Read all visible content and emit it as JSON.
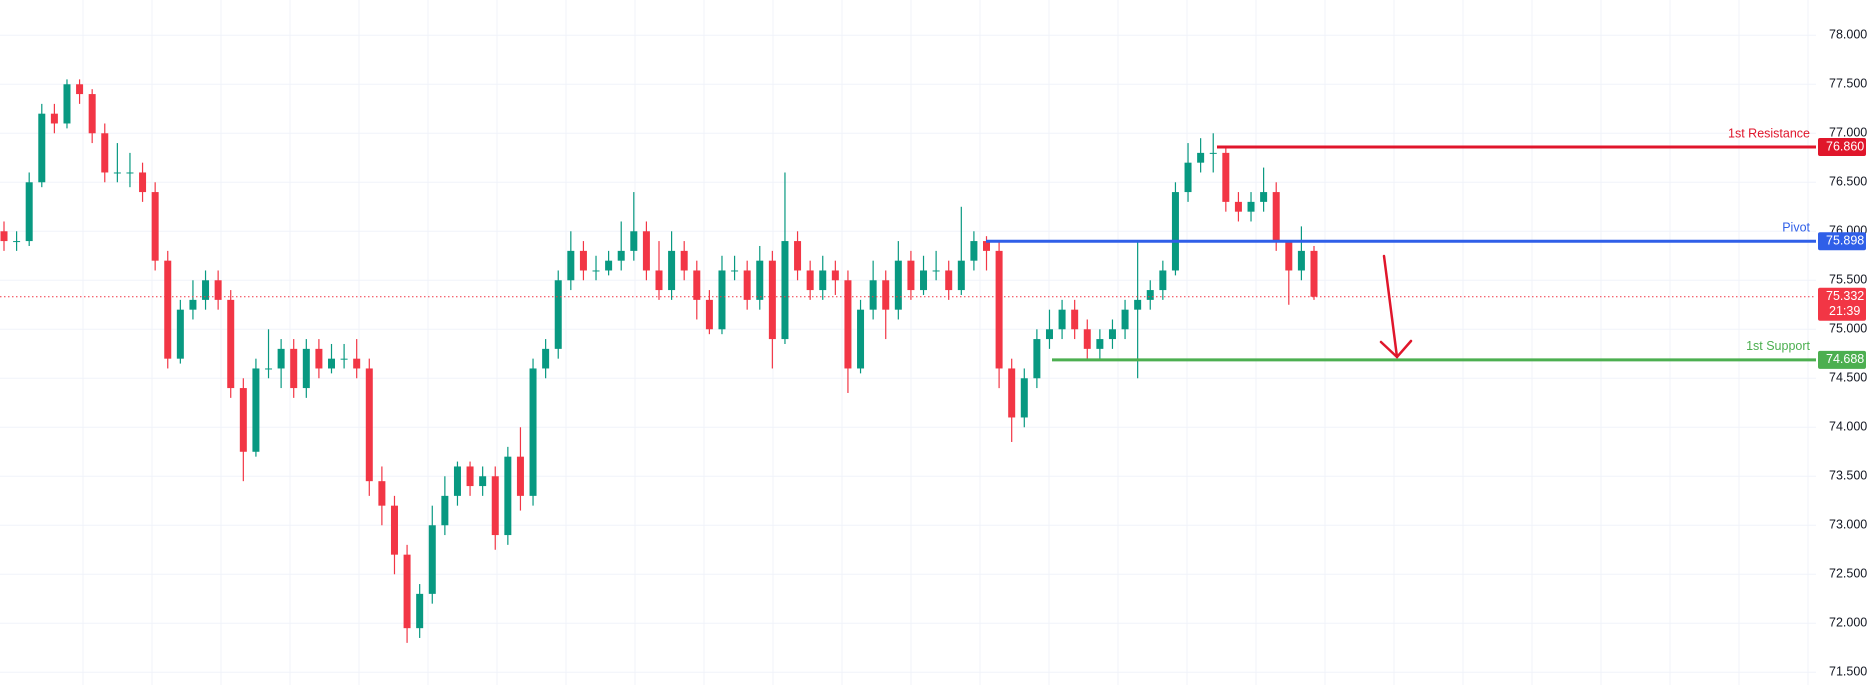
{
  "chart_data": {
    "type": "candlestick",
    "up_color": "#089981",
    "down_color": "#f23645",
    "ylim": [
      71.37,
      78.36
    ],
    "yticks": [
      {
        "value": 71.5,
        "label": "71.500"
      },
      {
        "value": 72,
        "label": "72.000"
      },
      {
        "value": 72.5,
        "label": "72.500"
      },
      {
        "value": 73,
        "label": "73.000"
      },
      {
        "value": 73.5,
        "label": "73.500"
      },
      {
        "value": 74,
        "label": "74.000"
      },
      {
        "value": 74.5,
        "label": "74.500"
      },
      {
        "value": 75,
        "label": "75.000"
      },
      {
        "value": 75.5,
        "label": "75.500"
      },
      {
        "value": 76,
        "label": "76.000"
      },
      {
        "value": 76.5,
        "label": "76.500"
      },
      {
        "value": 77,
        "label": "77.000"
      },
      {
        "value": 77.5,
        "label": "77.500"
      },
      {
        "value": 78,
        "label": "78.000"
      }
    ],
    "grid": true,
    "open": [
      76.0,
      75.9,
      75.9,
      76.5,
      77.2,
      77.1,
      77.5,
      77.4,
      77.0,
      76.6,
      76.6,
      76.6,
      76.4,
      75.7,
      74.7,
      75.2,
      75.3,
      75.5,
      75.3,
      74.4,
      73.75,
      74.6,
      74.6,
      74.8,
      74.4,
      74.8,
      74.6,
      74.7,
      74.7,
      74.6,
      73.45,
      73.2,
      72.7,
      71.95,
      72.3,
      73.0,
      73.3,
      73.6,
      73.4,
      73.5,
      72.9,
      73.7,
      73.3,
      74.6,
      74.8,
      75.5,
      75.8,
      75.6,
      75.6,
      75.7,
      75.8,
      76.0,
      75.6,
      75.4,
      75.8,
      75.6,
      75.3,
      75.0,
      75.6,
      75.6,
      75.3,
      75.7,
      74.9,
      75.9,
      75.6,
      75.4,
      75.6,
      75.5,
      74.6,
      75.2,
      75.5,
      75.2,
      75.7,
      75.4,
      75.6,
      75.6,
      75.4,
      75.7,
      75.9,
      75.8,
      74.6,
      74.1,
      74.5,
      74.9,
      75.0,
      75.2,
      75.0,
      74.8,
      74.9,
      75.0,
      75.2,
      75.3,
      75.4,
      75.6,
      76.4,
      76.7,
      76.8,
      76.8,
      76.3,
      76.2,
      76.3,
      76.4,
      75.9,
      75.6,
      75.8
    ],
    "high": [
      76.1,
      76.0,
      76.6,
      77.3,
      77.3,
      77.55,
      77.55,
      77.45,
      77.1,
      76.9,
      76.8,
      76.7,
      76.5,
      75.8,
      75.3,
      75.5,
      75.6,
      75.6,
      75.4,
      74.5,
      74.7,
      75.0,
      74.9,
      74.9,
      74.9,
      74.9,
      74.85,
      74.85,
      74.9,
      74.7,
      73.6,
      73.3,
      72.8,
      72.4,
      73.2,
      73.5,
      73.65,
      73.65,
      73.6,
      73.6,
      73.8,
      74.0,
      74.7,
      74.9,
      75.6,
      76.0,
      75.9,
      75.75,
      75.8,
      76.1,
      76.4,
      76.1,
      75.9,
      76.0,
      75.9,
      75.7,
      75.4,
      75.75,
      75.75,
      75.7,
      75.85,
      75.8,
      76.6,
      76.0,
      75.7,
      75.75,
      75.7,
      75.6,
      75.3,
      75.7,
      75.6,
      75.9,
      75.8,
      75.75,
      75.8,
      75.7,
      76.25,
      76.0,
      75.95,
      75.9,
      74.7,
      74.6,
      75.0,
      75.2,
      75.3,
      75.3,
      75.1,
      75.0,
      75.1,
      75.3,
      75.9,
      75.5,
      75.7,
      76.5,
      76.9,
      76.95,
      77.0,
      76.85,
      76.4,
      76.4,
      76.65,
      76.5,
      75.9,
      76.05,
      75.85
    ],
    "low": [
      75.8,
      75.8,
      75.85,
      76.45,
      77.0,
      77.05,
      77.3,
      76.9,
      76.5,
      76.5,
      76.45,
      76.3,
      75.6,
      74.6,
      74.65,
      75.1,
      75.2,
      75.2,
      74.3,
      73.45,
      73.7,
      74.5,
      74.4,
      74.3,
      74.3,
      74.5,
      74.55,
      74.6,
      74.5,
      73.3,
      73.0,
      72.5,
      71.8,
      71.85,
      72.2,
      72.9,
      73.2,
      73.3,
      73.3,
      72.75,
      72.8,
      73.15,
      73.2,
      74.5,
      74.7,
      75.4,
      75.5,
      75.5,
      75.55,
      75.6,
      75.7,
      75.5,
      75.3,
      75.3,
      75.5,
      75.1,
      74.95,
      74.95,
      75.5,
      75.2,
      75.2,
      74.6,
      74.85,
      75.5,
      75.3,
      75.3,
      75.35,
      74.35,
      74.55,
      75.1,
      74.9,
      75.1,
      75.3,
      75.35,
      75.5,
      75.3,
      75.35,
      75.6,
      75.6,
      74.4,
      73.85,
      74.0,
      74.4,
      74.8,
      74.9,
      74.9,
      74.7,
      74.7,
      74.8,
      74.9,
      74.5,
      75.2,
      75.3,
      75.55,
      76.3,
      76.6,
      76.6,
      76.2,
      76.1,
      76.1,
      76.2,
      75.8,
      75.25,
      75.5,
      75.3
    ],
    "close": [
      75.9,
      75.9,
      76.5,
      77.2,
      77.1,
      77.5,
      77.4,
      77.0,
      76.6,
      76.6,
      76.6,
      76.4,
      75.7,
      74.7,
      75.2,
      75.3,
      75.5,
      75.3,
      74.4,
      73.75,
      74.6,
      74.6,
      74.8,
      74.4,
      74.8,
      74.6,
      74.7,
      74.7,
      74.6,
      73.45,
      73.2,
      72.7,
      71.95,
      72.3,
      73.0,
      73.3,
      73.6,
      73.4,
      73.5,
      72.9,
      73.7,
      73.3,
      74.6,
      74.8,
      75.5,
      75.8,
      75.6,
      75.6,
      75.7,
      75.8,
      76.0,
      75.6,
      75.4,
      75.8,
      75.6,
      75.3,
      75.0,
      75.6,
      75.6,
      75.3,
      75.7,
      74.9,
      75.9,
      75.6,
      75.4,
      75.6,
      75.5,
      74.6,
      75.2,
      75.5,
      75.2,
      75.7,
      75.4,
      75.6,
      75.6,
      75.4,
      75.7,
      75.9,
      75.8,
      74.6,
      74.1,
      74.5,
      74.9,
      75.0,
      75.2,
      75.0,
      74.8,
      74.9,
      75.0,
      75.2,
      75.3,
      75.4,
      75.6,
      76.4,
      76.7,
      76.8,
      76.8,
      76.3,
      76.2,
      76.3,
      76.4,
      75.9,
      75.6,
      75.8,
      75.332
    ],
    "levels": [
      {
        "name": "1st Resistance",
        "value": 76.86,
        "value_label": "76.860",
        "color": "#e0162b"
      },
      {
        "name": "Pivot",
        "value": 75.898,
        "color": "#2f5fe8"
      },
      {
        "name": "1st Support",
        "value": 74.688,
        "color": "#4caf50"
      }
    ],
    "last": {
      "value": 75.332,
      "countdown": "21:39",
      "color": "#f23645"
    }
  }
}
